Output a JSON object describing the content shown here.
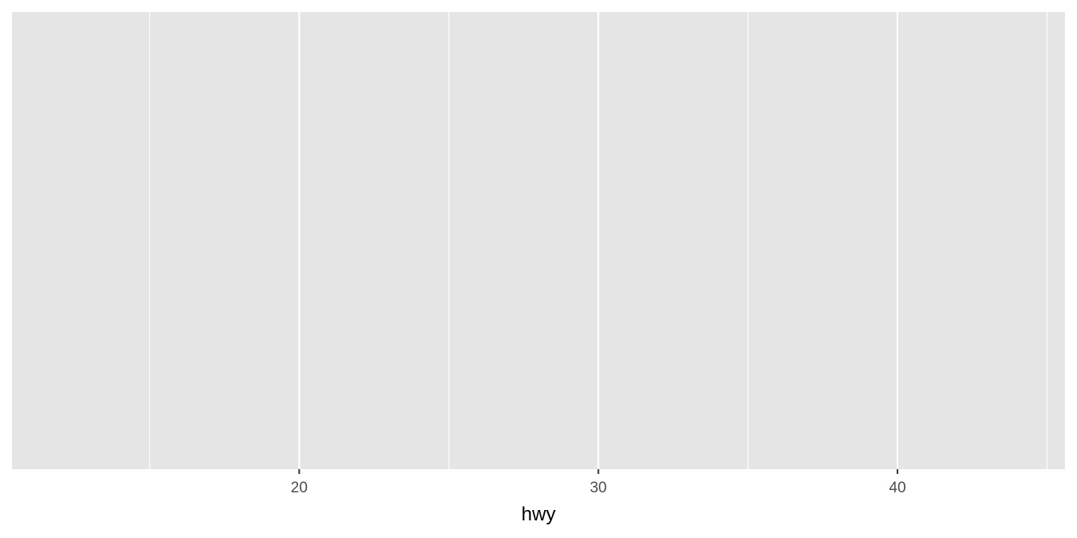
{
  "chart_data": {
    "type": "bar",
    "title": "",
    "xlabel": "hwy",
    "ylabel": "",
    "xlim": [
      10.4,
      45.6
    ],
    "x_major_ticks": [
      20,
      30,
      40
    ],
    "x_tick_labels": [
      "20",
      "30",
      "40"
    ],
    "x_minor_gridlines": [
      15,
      25,
      35,
      45
    ],
    "y_axis_shown": false,
    "grid": true,
    "series": [],
    "colors": {
      "panel_background": "#e5e5e5",
      "gridline": "#ffffff",
      "tick_mark": "#333333",
      "tick_label": "#4d4d4d",
      "axis_title": "#000000"
    }
  }
}
